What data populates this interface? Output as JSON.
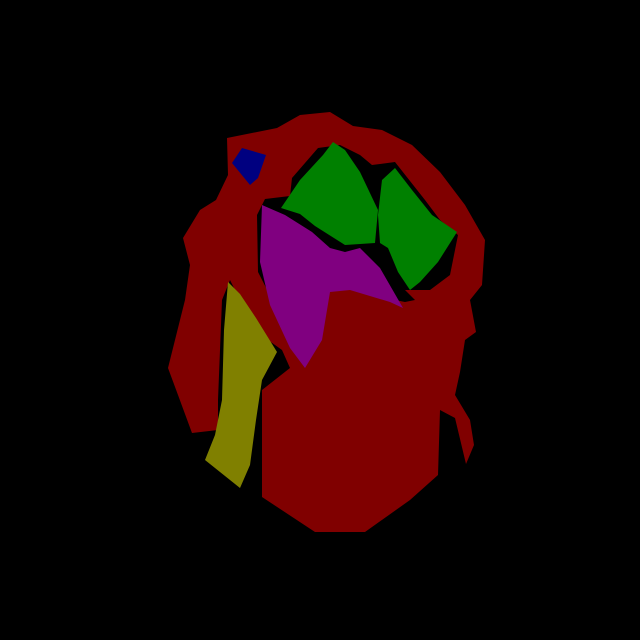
{
  "image": {
    "background_color": "#000000",
    "regions": [
      {
        "name": "dark-red-main-region",
        "color": "#800000"
      },
      {
        "name": "green-region",
        "color": "#008000"
      },
      {
        "name": "purple-region",
        "color": "#800080"
      },
      {
        "name": "olive-region",
        "color": "#808000"
      },
      {
        "name": "blue-region",
        "color": "#000080"
      }
    ]
  }
}
